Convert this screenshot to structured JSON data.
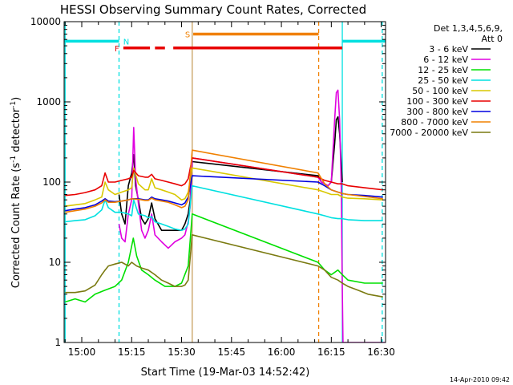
{
  "chart_data": {
    "type": "line",
    "title": "HESSI Observing Summary Count Rates, Corrected",
    "xlabel": "Start Time (19-Mar-03 14:52:42)",
    "ylabel_main": "Corrected Count Rate (s",
    "ylabel_sup1": "-1",
    "ylabel_mid": " detector",
    "ylabel_sup2": "-1",
    "ylabel_end": ")",
    "x_unit": "minutes since 14:00 UT",
    "xlim": [
      54.7,
      151.3
    ],
    "ylim": [
      1,
      10000
    ],
    "yscale": "log",
    "xticks": [
      {
        "v": 60,
        "label": "15:00"
      },
      {
        "v": 75,
        "label": "15:15"
      },
      {
        "v": 90,
        "label": "15:30"
      },
      {
        "v": 105,
        "label": "15:45"
      },
      {
        "v": 120,
        "label": "16:00"
      },
      {
        "v": 135,
        "label": "16:15"
      },
      {
        "v": 150,
        "label": "16:30"
      }
    ],
    "yticks": [
      {
        "v": 1,
        "label": "1"
      },
      {
        "v": 10,
        "label": "10"
      },
      {
        "v": 100,
        "label": "100"
      },
      {
        "v": 1000,
        "label": "1000"
      },
      {
        "v": 10000,
        "label": "10000"
      }
    ],
    "legend": {
      "position": "right",
      "header": [
        "Det 1,3,4,5,6,9,",
        "Att 0"
      ],
      "entries": [
        {
          "label": "3 - 6 keV",
          "color": "#000000"
        },
        {
          "label": "6 - 12 keV",
          "color": "#e000e0"
        },
        {
          "label": "12 - 25 keV",
          "color": "#00e000"
        },
        {
          "label": "25 - 50 keV",
          "color": "#00e0e0"
        },
        {
          "label": "50 - 100 keV",
          "color": "#d8c800"
        },
        {
          "label": "100 - 300 keV",
          "color": "#e80000"
        },
        {
          "label": "300 - 800 keV",
          "color": "#0000e0"
        },
        {
          "label": "800 - 7000 keV",
          "color": "#f08000"
        },
        {
          "label": "7000 - 20000 keV",
          "color": "#7a7a10"
        }
      ]
    },
    "flags": [
      {
        "label": "N",
        "color": "#00e0e0",
        "y": 5700,
        "segments": [
          [
            54.7,
            71.2
          ],
          [
            138.3,
            151.3
          ]
        ]
      },
      {
        "label": "S",
        "color": "#f08000",
        "y": 7000,
        "segments": [
          [
            93.5,
            131.2
          ]
        ]
      },
      {
        "label": "F",
        "color": "#e80000",
        "y": 4700,
        "segments": [
          [
            72.5,
            80.5
          ],
          [
            82,
            85
          ],
          [
            87.5,
            138.3
          ]
        ]
      }
    ],
    "vlines": [
      {
        "x": 55.0,
        "color": "#00e0e0",
        "style": "solid"
      },
      {
        "x": 71.2,
        "color": "#00e0e0",
        "style": "dashed"
      },
      {
        "x": 93.2,
        "color": "#c8a060",
        "style": "solid"
      },
      {
        "x": 131.2,
        "color": "#f08000",
        "style": "dashed"
      },
      {
        "x": 138.3,
        "color": "#00e0e0",
        "style": "solid"
      },
      {
        "x": 150.3,
        "color": "#00e0e0",
        "style": "dashed"
      }
    ],
    "series": [
      {
        "name": "3 - 6 keV",
        "color": "#000000",
        "x": [
          71.2,
          72,
          73,
          74,
          75,
          75.6,
          76.2,
          77,
          78,
          79,
          80,
          81,
          82,
          84,
          86,
          88,
          90,
          91,
          92,
          92.6,
          93.2,
          131,
          132,
          133,
          134,
          135,
          136,
          136.5,
          137,
          137.5,
          138.3
        ],
        "y": [
          70,
          40,
          30,
          90,
          130,
          220,
          90,
          60,
          35,
          30,
          35,
          55,
          35,
          25,
          25,
          25,
          25,
          30,
          40,
          60,
          180,
          120,
          100,
          95,
          90,
          100,
          300,
          600,
          650,
          400,
          100
        ]
      },
      {
        "name": "6 - 12 keV",
        "color": "#e000e0",
        "x": [
          71.2,
          72,
          73,
          74,
          75,
          75.6,
          76.2,
          77,
          78,
          79,
          80,
          81,
          82,
          84,
          86,
          88,
          90,
          91,
          92,
          92.6,
          93.2,
          131,
          132,
          133,
          134,
          135,
          136,
          136.5,
          137,
          137.5,
          138,
          138.3,
          138.5,
          151.3
        ],
        "y": [
          30,
          20,
          18,
          40,
          60,
          480,
          110,
          55,
          25,
          20,
          25,
          40,
          22,
          18,
          15,
          18,
          20,
          22,
          32,
          50,
          200,
          115,
          100,
          95,
          90,
          100,
          600,
          1300,
          1400,
          600,
          80,
          5,
          1,
          1
        ]
      },
      {
        "name": "12 - 25 keV",
        "color": "#00e000",
        "x": [
          55,
          58,
          61,
          64,
          67,
          70,
          72,
          74,
          75.5,
          76.5,
          78,
          80,
          82,
          85,
          88,
          90,
          92,
          93.2,
          131,
          133,
          135,
          137,
          138.3,
          140,
          145,
          150.5
        ],
        "y": [
          3.2,
          3.5,
          3.2,
          4,
          4.5,
          5,
          6,
          10,
          20,
          12,
          8,
          7,
          6,
          5,
          5,
          5.5,
          9,
          40,
          10,
          8,
          7,
          8,
          7,
          6,
          5.5,
          5.5
        ]
      },
      {
        "name": "25 - 50 keV",
        "color": "#00e0e0",
        "x": [
          55,
          58,
          61,
          64,
          66,
          67,
          68,
          70,
          72,
          74,
          75,
          75.6,
          77,
          79,
          80,
          81,
          82,
          84,
          86,
          88,
          90,
          91,
          92,
          93.2,
          131,
          133,
          135,
          137,
          138.3,
          140,
          145,
          150.5
        ],
        "y": [
          32,
          33,
          34,
          38,
          45,
          60,
          48,
          42,
          42,
          40,
          38,
          60,
          40,
          38,
          36,
          37,
          32,
          30,
          28,
          26,
          25,
          26,
          30,
          90,
          40,
          38,
          36,
          35,
          35,
          34,
          33,
          33
        ]
      },
      {
        "name": "50 - 100 keV",
        "color": "#d8c800",
        "x": [
          55,
          58,
          61,
          64,
          66,
          67,
          68,
          70,
          72,
          74,
          75,
          75.6,
          77,
          79,
          80,
          81,
          82,
          84,
          86,
          88,
          90,
          91,
          92,
          93.2,
          131,
          133,
          135,
          137,
          138.3,
          140,
          145,
          150.5
        ],
        "y": [
          50,
          52,
          54,
          60,
          65,
          100,
          80,
          70,
          75,
          80,
          85,
          150,
          95,
          80,
          80,
          110,
          85,
          80,
          75,
          70,
          60,
          62,
          75,
          150,
          80,
          75,
          70,
          70,
          65,
          63,
          62,
          60
        ]
      },
      {
        "name": "100 - 300 keV",
        "color": "#e80000",
        "x": [
          55,
          58,
          61,
          64,
          66,
          67,
          68,
          70,
          72,
          74,
          75,
          75.6,
          77,
          79,
          80,
          81,
          82,
          84,
          86,
          88,
          90,
          91,
          92,
          93.2,
          131,
          133,
          135,
          137,
          138.3,
          140,
          145,
          150.5
        ],
        "y": [
          68,
          70,
          74,
          80,
          90,
          130,
          100,
          100,
          105,
          110,
          115,
          140,
          120,
          115,
          115,
          125,
          110,
          105,
          100,
          95,
          90,
          95,
          110,
          200,
          115,
          105,
          100,
          95,
          95,
          90,
          85,
          80
        ]
      },
      {
        "name": "300 - 800 keV",
        "color": "#0000e0",
        "x": [
          55,
          58,
          61,
          64,
          66,
          67,
          68,
          70,
          72,
          74,
          75,
          77,
          79,
          80,
          81,
          82,
          84,
          86,
          88,
          90,
          91,
          92,
          93.2,
          131,
          133,
          135,
          137,
          138.3,
          140,
          145,
          150.5
        ],
        "y": [
          44,
          46,
          48,
          52,
          58,
          62,
          58,
          57,
          58,
          60,
          62,
          62,
          60,
          60,
          65,
          62,
          60,
          58,
          55,
          52,
          55,
          65,
          120,
          100,
          90,
          80,
          75,
          72,
          70,
          68,
          65
        ]
      },
      {
        "name": "800 - 7000 keV",
        "color": "#f08000",
        "x": [
          55,
          58,
          61,
          64,
          66,
          67,
          68,
          70,
          72,
          74,
          75,
          77,
          79,
          80,
          81,
          82,
          84,
          86,
          88,
          90,
          91,
          92,
          93.2,
          131,
          133,
          135,
          137,
          138.3,
          140,
          145,
          150.5
        ],
        "y": [
          42,
          44,
          46,
          50,
          55,
          60,
          56,
          56,
          58,
          60,
          62,
          61,
          59,
          59,
          63,
          60,
          58,
          56,
          52,
          48,
          50,
          60,
          250,
          130,
          95,
          80,
          75,
          72,
          70,
          66,
          62
        ]
      },
      {
        "name": "7000 - 20000 keV",
        "color": "#7a7a10",
        "x": [
          55,
          58,
          61,
          64,
          66,
          67,
          68,
          70,
          72,
          74,
          75,
          76.5,
          78,
          80,
          82,
          84,
          86,
          88,
          90,
          91,
          92,
          93.2,
          131,
          133,
          135,
          137,
          138.3,
          140,
          143,
          146,
          150.5
        ],
        "y": [
          4.2,
          4.2,
          4.4,
          5.2,
          7,
          8,
          9,
          9.5,
          10,
          9,
          10,
          9,
          8.5,
          8,
          7,
          6,
          5.5,
          5,
          5,
          5.2,
          6,
          22,
          9,
          8,
          6.5,
          6,
          5.5,
          5,
          4.5,
          4,
          3.7
        ]
      }
    ],
    "footer_date": "14-Apr-2010 09:42"
  }
}
